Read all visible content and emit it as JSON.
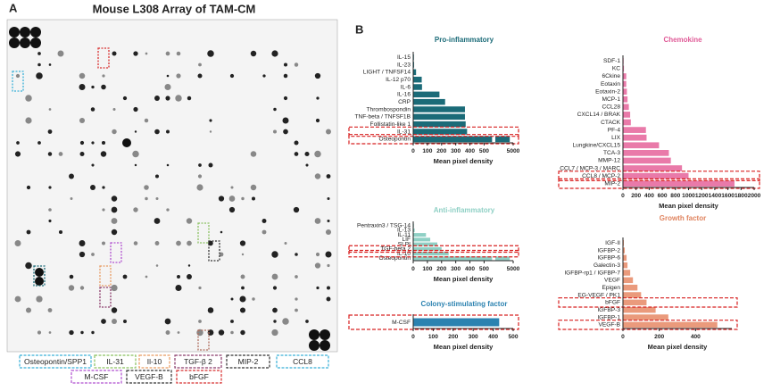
{
  "panel_a": {
    "label": "A",
    "title": "Mouse L308 Array of TAM-CM",
    "legend": [
      "Osteopontin/SPP1",
      "IL-31",
      "Il-10",
      "TGF-β 2",
      "MIP-2",
      "CCL8",
      "M-CSF",
      "VEGF-B",
      "bFGF"
    ]
  },
  "panel_b": {
    "label": "B"
  },
  "chart_data": [
    {
      "type": "hbar",
      "title": "Pro-inflammatory",
      "x_label": "Mean pixel density",
      "color": "#1b6b78",
      "title_color": "#1b6b78",
      "categories": [
        "IL-15",
        "IL-23",
        "LIGHT / TNFSF14",
        "IL-12 p70",
        "IL-6",
        "IL-16",
        "CRP",
        "Thrombospondin",
        "TNF-beta / TNFSF1B",
        "Follistatin-like 1",
        "IL-31",
        "Osteopontin"
      ],
      "values": [
        5,
        6,
        20,
        60,
        62,
        185,
        225,
        365,
        365,
        370,
        380,
        4800
      ],
      "xlim": [
        0,
        5000
      ],
      "xbreak": [
        550,
        4000
      ],
      "xticks": [
        0,
        100,
        200,
        300,
        400,
        500,
        5000
      ],
      "highlight": [
        10,
        11
      ]
    },
    {
      "type": "hbar",
      "title": "Anti-inflammatory",
      "x_label": "Mean pixel density",
      "color": "#8fd0c5",
      "title_color": "#8fd0c5",
      "categories": [
        "Pentraxin3 / TSG-14",
        "IL-13",
        "IL-11",
        "LIF",
        "SLPI",
        "TGF-beta 2",
        "IL-10",
        "Osteopontin"
      ],
      "values": [
        5,
        10,
        90,
        120,
        170,
        200,
        250,
        4800
      ],
      "xlim": [
        0,
        5000
      ],
      "xbreak": [
        550,
        4000
      ],
      "xticks": [
        0,
        100,
        200,
        300,
        400,
        500,
        5000
      ],
      "highlight": [
        5,
        6
      ]
    },
    {
      "type": "hbar",
      "title": "Colony-stimulating factor",
      "x_label": "Mean pixel density",
      "color": "#2b82b0",
      "title_color": "#2b82b0",
      "categories": [
        "M-CSF"
      ],
      "values": [
        430
      ],
      "xlim": [
        0,
        500
      ],
      "xticks": [
        0,
        100,
        200,
        300,
        400,
        500
      ],
      "highlight": [
        0
      ]
    },
    {
      "type": "hbar",
      "title": "Chemokine",
      "x_label": "Mean pixel density",
      "color": "#e97aa9",
      "title_color": "#e05c98",
      "categories": [
        "SDF-1",
        "KC",
        "6Ckine",
        "Eotaxin",
        "Eotaxin-2",
        "MCP-1",
        "CCL28",
        "CXCL14 / BRAK",
        "CTACK",
        "PF-4",
        "LIX",
        "Lungkine/CXCL15",
        "TCA-3",
        "MMP-12",
        "CCL7 / MCP-3 / MARC",
        "CCL8 / MCP-2",
        "MIP-2"
      ],
      "values": [
        10,
        15,
        50,
        50,
        60,
        70,
        90,
        110,
        120,
        350,
        360,
        550,
        700,
        730,
        900,
        1000,
        1700
      ],
      "xlim": [
        0,
        2000
      ],
      "xticks": [
        0,
        200,
        400,
        600,
        800,
        1000,
        1200,
        1400,
        1600,
        1800,
        2000
      ],
      "highlight": [
        15,
        16
      ]
    },
    {
      "type": "hbar",
      "title": "Growth factor",
      "x_label": "Mean pixel density",
      "color": "#ea9a7c",
      "title_color": "#e0845f",
      "categories": [
        "IGF-II",
        "IGFBP-2",
        "IGFBP-6",
        "Galectin-3",
        "IGFBP-rp1 / IGFBP-7",
        "VEGF",
        "Epigen",
        "EG-VEGF / PK1",
        "bFGF",
        "IGFBP-3",
        "IGFBP-1",
        "VEGF-B"
      ],
      "values": [
        5,
        10,
        20,
        25,
        40,
        55,
        80,
        100,
        130,
        180,
        250,
        520
      ],
      "xlim": [
        0,
        600
      ],
      "xticks": [
        0,
        200,
        400
      ],
      "highlight": [
        8,
        11
      ]
    }
  ]
}
